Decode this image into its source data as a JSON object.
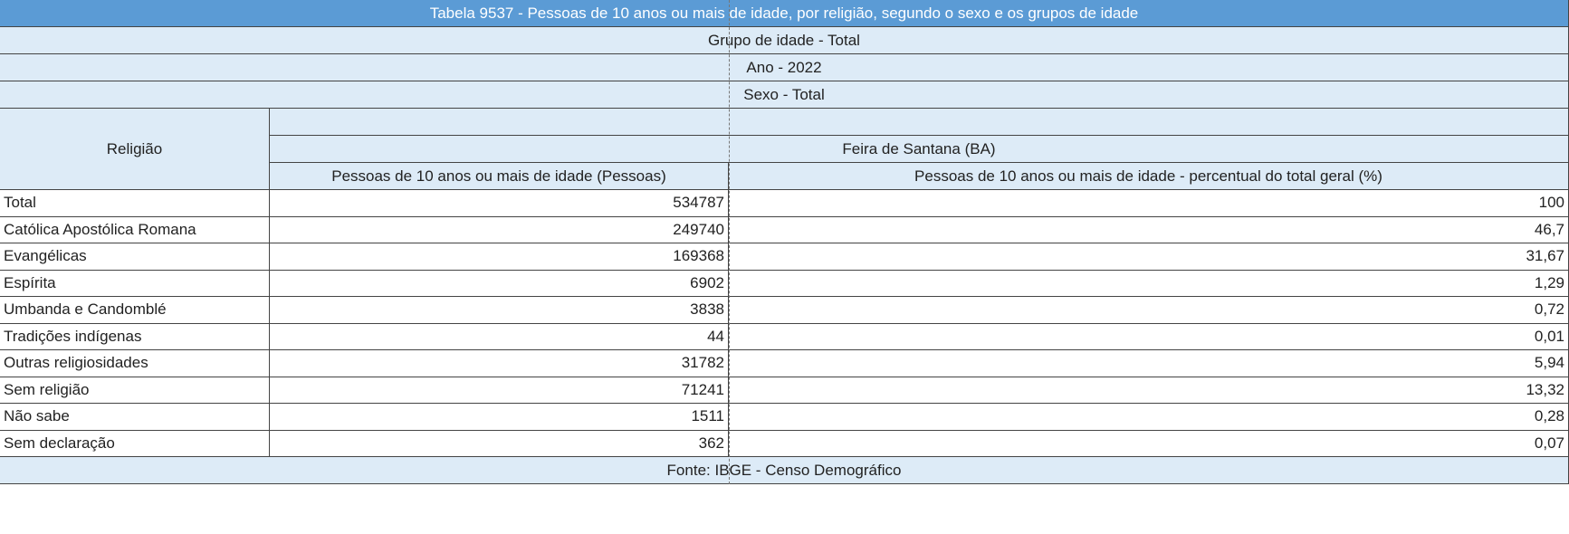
{
  "title": "Tabela 9537 - Pessoas de 10 anos ou mais de idade, por religião, segundo o sexo e os grupos de idade",
  "meta": [
    "Grupo de idade - Total",
    "Ano - 2022",
    "Sexo - Total"
  ],
  "table": {
    "row_header": "Religião",
    "group": "Feira de Santana (BA)",
    "columns": [
      "Pessoas de 10 anos ou mais de idade (Pessoas)",
      "Pessoas de 10 anos ou mais de idade - percentual do total geral (%)"
    ],
    "rows": [
      [
        "Total",
        "534787",
        "100"
      ],
      [
        "Católica Apostólica Romana",
        "249740",
        "46,7"
      ],
      [
        "Evangélicas",
        "169368",
        "31,67"
      ],
      [
        "Espírita",
        "6902",
        "1,29"
      ],
      [
        "Umbanda e Candomblé",
        "3838",
        "0,72"
      ],
      [
        "Tradições indígenas",
        "44",
        "0,01"
      ],
      [
        "Outras religiosidades",
        "31782",
        "5,94"
      ],
      [
        "Sem religião",
        "71241",
        "13,32"
      ],
      [
        "Não sabe",
        "1511",
        "0,28"
      ],
      [
        "Sem declaração",
        "362",
        "0,07"
      ]
    ]
  },
  "footer": "Fonte: IBGE - Censo Demográfico"
}
